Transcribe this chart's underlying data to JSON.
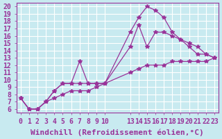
{
  "background_color": "#c8eaf0",
  "grid_color": "#ffffff",
  "line_color": "#993399",
  "marker_color": "#993399",
  "xlabel": "Windchill (Refroidissement éolien,°C)",
  "ylabel": "",
  "xlim": [
    -0.5,
    23.5
  ],
  "ylim": [
    5.5,
    20.5
  ],
  "xticks": [
    0,
    1,
    2,
    3,
    4,
    5,
    6,
    7,
    8,
    9,
    10,
    13,
    14,
    15,
    16,
    17,
    18,
    19,
    20,
    21,
    22,
    23
  ],
  "yticks": [
    6,
    7,
    8,
    9,
    10,
    11,
    12,
    13,
    14,
    15,
    16,
    17,
    18,
    19,
    20
  ],
  "curve1_x": [
    0,
    1,
    2,
    3,
    4,
    5,
    6,
    7,
    8,
    9,
    10,
    13,
    14,
    15,
    16,
    17,
    18,
    19,
    20,
    21,
    22,
    23
  ],
  "curve1_y": [
    7.5,
    6.0,
    6.0,
    7.0,
    8.5,
    9.5,
    9.5,
    9.5,
    9.5,
    9.5,
    9.5,
    16.5,
    18.5,
    20.0,
    19.5,
    18.5,
    16.5,
    15.5,
    14.5,
    13.5,
    13.5,
    13.0
  ],
  "curve2_x": [
    0,
    1,
    2,
    3,
    4,
    5,
    6,
    7,
    8,
    9,
    10,
    13,
    14,
    15,
    16,
    17,
    18,
    19,
    20,
    21,
    22,
    23
  ],
  "curve2_y": [
    7.5,
    6.0,
    6.0,
    7.0,
    8.5,
    9.5,
    9.5,
    12.5,
    9.5,
    9.5,
    9.5,
    14.5,
    17.5,
    14.5,
    16.5,
    16.5,
    16.0,
    15.5,
    15.0,
    14.5,
    13.5,
    13.0
  ],
  "curve3_x": [
    0,
    1,
    2,
    3,
    4,
    5,
    6,
    7,
    8,
    9,
    10,
    13,
    14,
    15,
    16,
    17,
    18,
    19,
    20,
    21,
    22,
    23
  ],
  "curve3_y": [
    7.5,
    6.0,
    6.0,
    7.0,
    7.5,
    8.0,
    8.5,
    8.5,
    8.5,
    9.0,
    9.5,
    11.0,
    11.5,
    12.0,
    12.0,
    12.0,
    12.5,
    12.5,
    12.5,
    12.5,
    12.5,
    13.0
  ],
  "xlabel_fontsize": 8,
  "tick_fontsize": 7
}
